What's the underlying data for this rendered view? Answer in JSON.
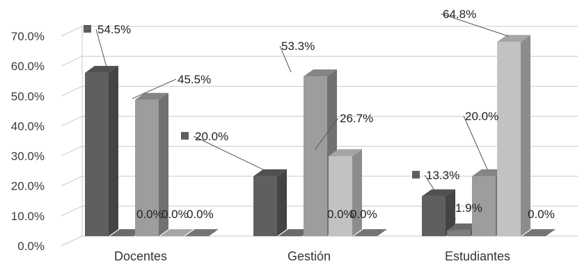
{
  "chart_data": {
    "type": "bar",
    "categories": [
      "Docentes",
      "Gestión",
      "Estudiantes"
    ],
    "series": [
      {
        "values": [
          54.5,
          20.0,
          13.3
        ],
        "color": "#5f5f5f"
      },
      {
        "values": [
          0.0,
          0.0,
          1.9
        ],
        "color": "#7d7d7d"
      },
      {
        "values": [
          45.5,
          53.3,
          20.0
        ],
        "color": "#9d9d9d"
      },
      {
        "values": [
          0.0,
          26.7,
          64.8
        ],
        "color": "#c2c2c2"
      },
      {
        "values": [
          0.0,
          0.0,
          0.0
        ],
        "color": "#888888"
      }
    ],
    "y_ticks": [
      "0.0%",
      "10.0%",
      "20.0%",
      "30.0%",
      "40.0%",
      "50.0%",
      "60.0%",
      "70.0%"
    ],
    "ylim": [
      0,
      70
    ],
    "grid": true,
    "style": "3d-clustered-column",
    "data_labels": {
      "Docentes": [
        "54.5%",
        "0.0%",
        "45.5%",
        "0.0%",
        "0.0%"
      ],
      "Gestión": [
        "20.0%",
        "0.0%",
        "53.3%",
        "26.7%",
        "0.0%"
      ],
      "Estudiantes": [
        "13.3%",
        "1.9%",
        "20.0%",
        "64.8%",
        "0.0%"
      ]
    }
  }
}
